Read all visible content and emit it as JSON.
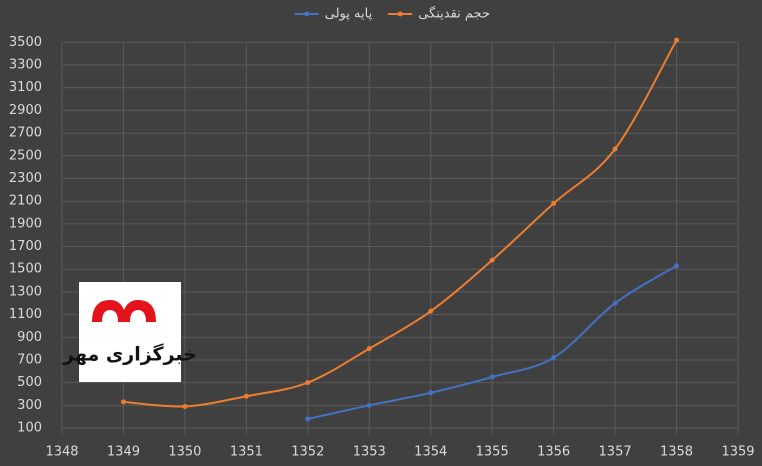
{
  "chart_data": {
    "type": "line",
    "x": [
      1349,
      1350,
      1351,
      1352,
      1353,
      1354,
      1355,
      1356,
      1357,
      1358
    ],
    "series": [
      {
        "name": "حجم نقدینگی",
        "color": "#ed7d31",
        "values": [
          330,
          290,
          380,
          500,
          800,
          1130,
          1580,
          2080,
          2560,
          3520
        ]
      },
      {
        "name": "پایه پولی",
        "color": "#4472c4",
        "values": [
          null,
          null,
          null,
          180,
          300,
          410,
          550,
          720,
          1200,
          1530
        ]
      }
    ],
    "xlim": [
      1348,
      1359
    ],
    "xticks": [
      1348,
      1349,
      1350,
      1351,
      1352,
      1353,
      1354,
      1355,
      1356,
      1357,
      1358,
      1359
    ],
    "ylim": [
      100,
      3600
    ],
    "yticks": [
      100,
      300,
      500,
      700,
      900,
      1100,
      1300,
      1500,
      1700,
      1900,
      2100,
      2300,
      2500,
      2700,
      2900,
      3100,
      3300,
      3500
    ],
    "grid": true,
    "legend": "top",
    "smooth": true,
    "watermark": "خبرگزاری مهر"
  }
}
